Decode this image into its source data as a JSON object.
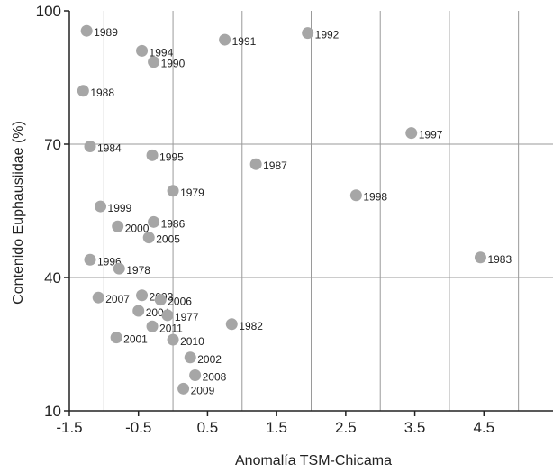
{
  "chart_data": {
    "type": "scatter",
    "title": "",
    "xlabel": "Anomalía TSM-Chicama",
    "ylabel": "Contenido Euphausiidae (%)",
    "xlim": [
      -1.5,
      5.5
    ],
    "ylim": [
      10,
      100
    ],
    "xticks": [
      -1.5,
      -0.5,
      0.5,
      1.5,
      2.5,
      3.5,
      4.5
    ],
    "xtick_labels": [
      "-1.5",
      "-0.5",
      "0.5",
      "1.5",
      "2.5",
      "3.5",
      "4.5"
    ],
    "yticks": [
      10,
      40,
      70,
      100
    ],
    "ytick_labels": [
      "10",
      "40",
      "70",
      "100"
    ],
    "grid": true,
    "marker_color": "#a6a6a6",
    "grid_color": "#9a9a9a",
    "points": [
      {
        "label": "1989",
        "x": -1.25,
        "y": 95.5
      },
      {
        "label": "1994",
        "x": -0.45,
        "y": 91.0
      },
      {
        "label": "1990",
        "x": -0.28,
        "y": 88.5
      },
      {
        "label": "1991",
        "x": 0.75,
        "y": 93.5
      },
      {
        "label": "1992",
        "x": 1.95,
        "y": 95.0
      },
      {
        "label": "1988",
        "x": -1.3,
        "y": 82.0
      },
      {
        "label": "1997",
        "x": 3.45,
        "y": 72.5
      },
      {
        "label": "1984",
        "x": -1.2,
        "y": 69.5
      },
      {
        "label": "1995",
        "x": -0.3,
        "y": 67.5
      },
      {
        "label": "1987",
        "x": 1.2,
        "y": 65.5
      },
      {
        "label": "1979",
        "x": 0.0,
        "y": 59.5
      },
      {
        "label": "1998",
        "x": 2.65,
        "y": 58.5
      },
      {
        "label": "1999",
        "x": -1.05,
        "y": 56.0
      },
      {
        "label": "2000",
        "x": -0.8,
        "y": 51.5
      },
      {
        "label": "1986",
        "x": -0.28,
        "y": 52.5
      },
      {
        "label": "2005",
        "x": -0.35,
        "y": 49.0
      },
      {
        "label": "1996",
        "x": -1.2,
        "y": 44.0
      },
      {
        "label": "1978",
        "x": -0.78,
        "y": 42.0
      },
      {
        "label": "1983",
        "x": 4.45,
        "y": 44.5
      },
      {
        "label": "2007",
        "x": -1.08,
        "y": 35.5
      },
      {
        "label": "2003",
        "x": -0.45,
        "y": 36.0
      },
      {
        "label": "2006",
        "x": -0.18,
        "y": 35.0
      },
      {
        "label": "2004",
        "x": -0.5,
        "y": 32.5
      },
      {
        "label": "1977",
        "x": -0.08,
        "y": 31.5
      },
      {
        "label": "2011",
        "x": -0.3,
        "y": 29.0
      },
      {
        "label": "1982",
        "x": 0.85,
        "y": 29.5
      },
      {
        "label": "2001",
        "x": -0.82,
        "y": 26.5
      },
      {
        "label": "2010",
        "x": 0.0,
        "y": 26.0
      },
      {
        "label": "2002",
        "x": 0.25,
        "y": 22.0
      },
      {
        "label": "2008",
        "x": 0.32,
        "y": 18.0
      },
      {
        "label": "2009",
        "x": 0.15,
        "y": 15.0
      }
    ]
  }
}
